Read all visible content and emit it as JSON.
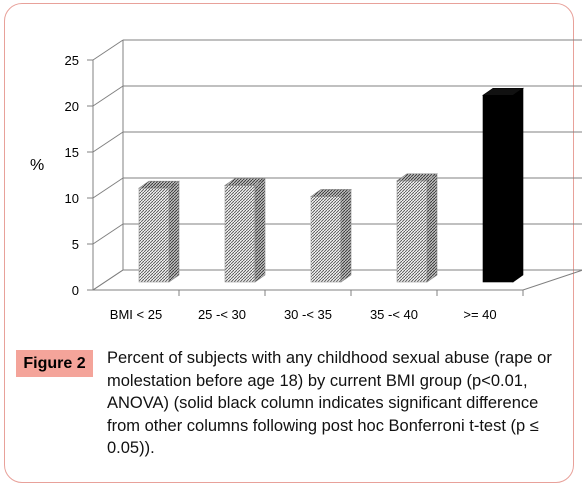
{
  "chart_data": {
    "type": "bar",
    "categories": [
      "BMI < 25",
      "25 -< 30",
      "30 -< 35",
      "35 -< 40",
      ">= 40"
    ],
    "values": [
      10.2,
      10.5,
      9.3,
      11.0,
      20.3
    ],
    "highlight": [
      false,
      false,
      false,
      false,
      true
    ],
    "ylabel": "%",
    "yticks": [
      "0",
      "5",
      "10",
      "15",
      "20",
      "25"
    ],
    "ylim": [
      0,
      25
    ],
    "grid": true,
    "style": "3d",
    "colors": {
      "hatched_bar": "#c8c8c8",
      "highlighted_bar": "#000000",
      "gridline": "#808080"
    }
  },
  "figure": {
    "label": "Figure 2",
    "caption": "Percent of subjects with any childhood sexual abuse (rape or molestation before age 18) by current BMI group (p<0.01, ANOVA) (solid black column indicates significant difference from other columns following post hoc Bonferroni t-test (p ≤ 0.05))."
  }
}
